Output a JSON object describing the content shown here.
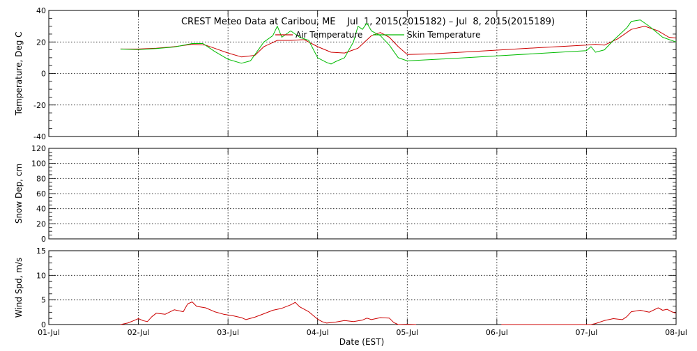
{
  "title": "CREST Meteo Data at Caribou, ME    Jul  1, 2015(2015182) – Jul  8, 2015(2015189)",
  "xlabel": "Date (EST)",
  "x_ticks": [
    "01-Jul",
    "02-Jul",
    "03-Jul",
    "04-Jul",
    "05-Jul",
    "06-Jul",
    "07-Jul",
    "08-Jul"
  ],
  "colors": {
    "air": "#cc0000",
    "skin": "#00bb00",
    "wind": "#cc0000",
    "grid": "#000000"
  },
  "chart_data": [
    {
      "type": "line",
      "ylabel": "Temperature, Deg C",
      "xlim": [
        0,
        7
      ],
      "ylim": [
        -40,
        40
      ],
      "y_ticks": [
        -40,
        -20,
        0,
        20,
        40
      ],
      "grid": true,
      "legend_position": "top-right",
      "series": [
        {
          "name": "Air Temperature",
          "points": [
            [
              0.8,
              15.5
            ],
            [
              1.0,
              15.5
            ],
            [
              1.2,
              16
            ],
            [
              1.4,
              17
            ],
            [
              1.6,
              18.5
            ],
            [
              1.75,
              18
            ],
            [
              1.85,
              16
            ],
            [
              2.0,
              13
            ],
            [
              2.15,
              10.5
            ],
            [
              2.3,
              11.5
            ],
            [
              2.4,
              17
            ],
            [
              2.55,
              21
            ],
            [
              2.7,
              21
            ],
            [
              2.85,
              21.5
            ],
            [
              3.0,
              17
            ],
            [
              3.15,
              13.5
            ],
            [
              3.3,
              13
            ],
            [
              3.45,
              16
            ],
            [
              3.6,
              24
            ],
            [
              3.7,
              26
            ],
            [
              3.8,
              23
            ],
            [
              3.9,
              17
            ],
            [
              4.0,
              12
            ],
            [
              4.3,
              12.5
            ],
            [
              4.7,
              13.8
            ],
            [
              5.0,
              14.8
            ],
            [
              5.5,
              16.5
            ],
            [
              6.0,
              18
            ],
            [
              6.1,
              18.5
            ],
            [
              6.2,
              18
            ],
            [
              6.35,
              22
            ],
            [
              6.5,
              28
            ],
            [
              6.65,
              30
            ],
            [
              6.8,
              27
            ],
            [
              6.92,
              23
            ],
            [
              7.0,
              22.5
            ]
          ]
        },
        {
          "name": "Skin Temperature",
          "points": [
            [
              0.8,
              15.5
            ],
            [
              1.0,
              15.2
            ],
            [
              1.2,
              15.8
            ],
            [
              1.4,
              16.8
            ],
            [
              1.6,
              19
            ],
            [
              1.72,
              19
            ],
            [
              1.85,
              14
            ],
            [
              2.0,
              9
            ],
            [
              2.15,
              6.5
            ],
            [
              2.25,
              8
            ],
            [
              2.4,
              20
            ],
            [
              2.5,
              24
            ],
            [
              2.55,
              30
            ],
            [
              2.6,
              23
            ],
            [
              2.7,
              27
            ],
            [
              2.8,
              23
            ],
            [
              2.9,
              21
            ],
            [
              3.0,
              10
            ],
            [
              3.1,
              7
            ],
            [
              3.15,
              6
            ],
            [
              3.2,
              7.5
            ],
            [
              3.3,
              10
            ],
            [
              3.4,
              20
            ],
            [
              3.45,
              30
            ],
            [
              3.5,
              28
            ],
            [
              3.55,
              32
            ],
            [
              3.6,
              27
            ],
            [
              3.7,
              24
            ],
            [
              3.8,
              18
            ],
            [
              3.9,
              10
            ],
            [
              4.0,
              8
            ],
            [
              4.5,
              9.5
            ],
            [
              5.0,
              11.2
            ],
            [
              5.5,
              12.8
            ],
            [
              6.0,
              14.5
            ],
            [
              6.05,
              17
            ],
            [
              6.1,
              13.5
            ],
            [
              6.2,
              15
            ],
            [
              6.3,
              21
            ],
            [
              6.45,
              29
            ],
            [
              6.5,
              33
            ],
            [
              6.6,
              34
            ],
            [
              6.7,
              30
            ],
            [
              6.85,
              23
            ],
            [
              7.0,
              20
            ]
          ]
        }
      ]
    },
    {
      "type": "line",
      "ylabel": "Snow Dep, cm",
      "xlim": [
        0,
        7
      ],
      "ylim": [
        0,
        120
      ],
      "y_ticks": [
        0,
        20,
        40,
        60,
        80,
        100,
        120
      ],
      "grid": true,
      "series": []
    },
    {
      "type": "line",
      "ylabel": "Wind Spd, m/s",
      "xlim": [
        0,
        7
      ],
      "ylim": [
        0,
        15
      ],
      "y_ticks": [
        0,
        5,
        10,
        15
      ],
      "grid": true,
      "series": [
        {
          "points": [
            [
              0.8,
              0
            ],
            [
              0.88,
              0.3
            ],
            [
              0.95,
              0.8
            ],
            [
              1.0,
              1.2
            ],
            [
              1.05,
              0.8
            ],
            [
              1.1,
              0.6
            ],
            [
              1.15,
              1.6
            ],
            [
              1.2,
              2.3
            ],
            [
              1.3,
              2.1
            ],
            [
              1.4,
              3.0
            ],
            [
              1.5,
              2.6
            ],
            [
              1.55,
              4.2
            ],
            [
              1.6,
              4.6
            ],
            [
              1.65,
              3.7
            ],
            [
              1.75,
              3.4
            ],
            [
              1.85,
              2.6
            ],
            [
              1.95,
              2.1
            ],
            [
              2.05,
              1.8
            ],
            [
              2.15,
              1.4
            ],
            [
              2.2,
              1.0
            ],
            [
              2.3,
              1.5
            ],
            [
              2.4,
              2.2
            ],
            [
              2.5,
              2.9
            ],
            [
              2.6,
              3.3
            ],
            [
              2.7,
              4.0
            ],
            [
              2.75,
              4.5
            ],
            [
              2.8,
              3.6
            ],
            [
              2.9,
              2.6
            ],
            [
              3.0,
              1.1
            ],
            [
              3.05,
              0.6
            ],
            [
              3.1,
              0.3
            ],
            [
              3.2,
              0.5
            ],
            [
              3.3,
              0.8
            ],
            [
              3.4,
              0.6
            ],
            [
              3.5,
              0.9
            ],
            [
              3.55,
              1.3
            ],
            [
              3.6,
              1.0
            ],
            [
              3.7,
              1.4
            ],
            [
              3.8,
              1.3
            ],
            [
              3.85,
              0.4
            ],
            [
              3.9,
              0
            ],
            [
              4.0,
              0.05
            ],
            [
              4.1,
              0
            ]
          ]
        },
        {
          "points": [
            [
              5.05,
              0
            ],
            [
              6.05,
              0
            ],
            [
              6.1,
              0.2
            ],
            [
              6.2,
              0.8
            ],
            [
              6.3,
              1.2
            ],
            [
              6.4,
              1.0
            ],
            [
              6.45,
              1.6
            ],
            [
              6.5,
              2.6
            ],
            [
              6.6,
              2.9
            ],
            [
              6.7,
              2.5
            ],
            [
              6.8,
              3.4
            ],
            [
              6.85,
              2.9
            ],
            [
              6.9,
              3.1
            ],
            [
              6.95,
              2.6
            ],
            [
              7.0,
              2.3
            ]
          ]
        }
      ]
    }
  ]
}
